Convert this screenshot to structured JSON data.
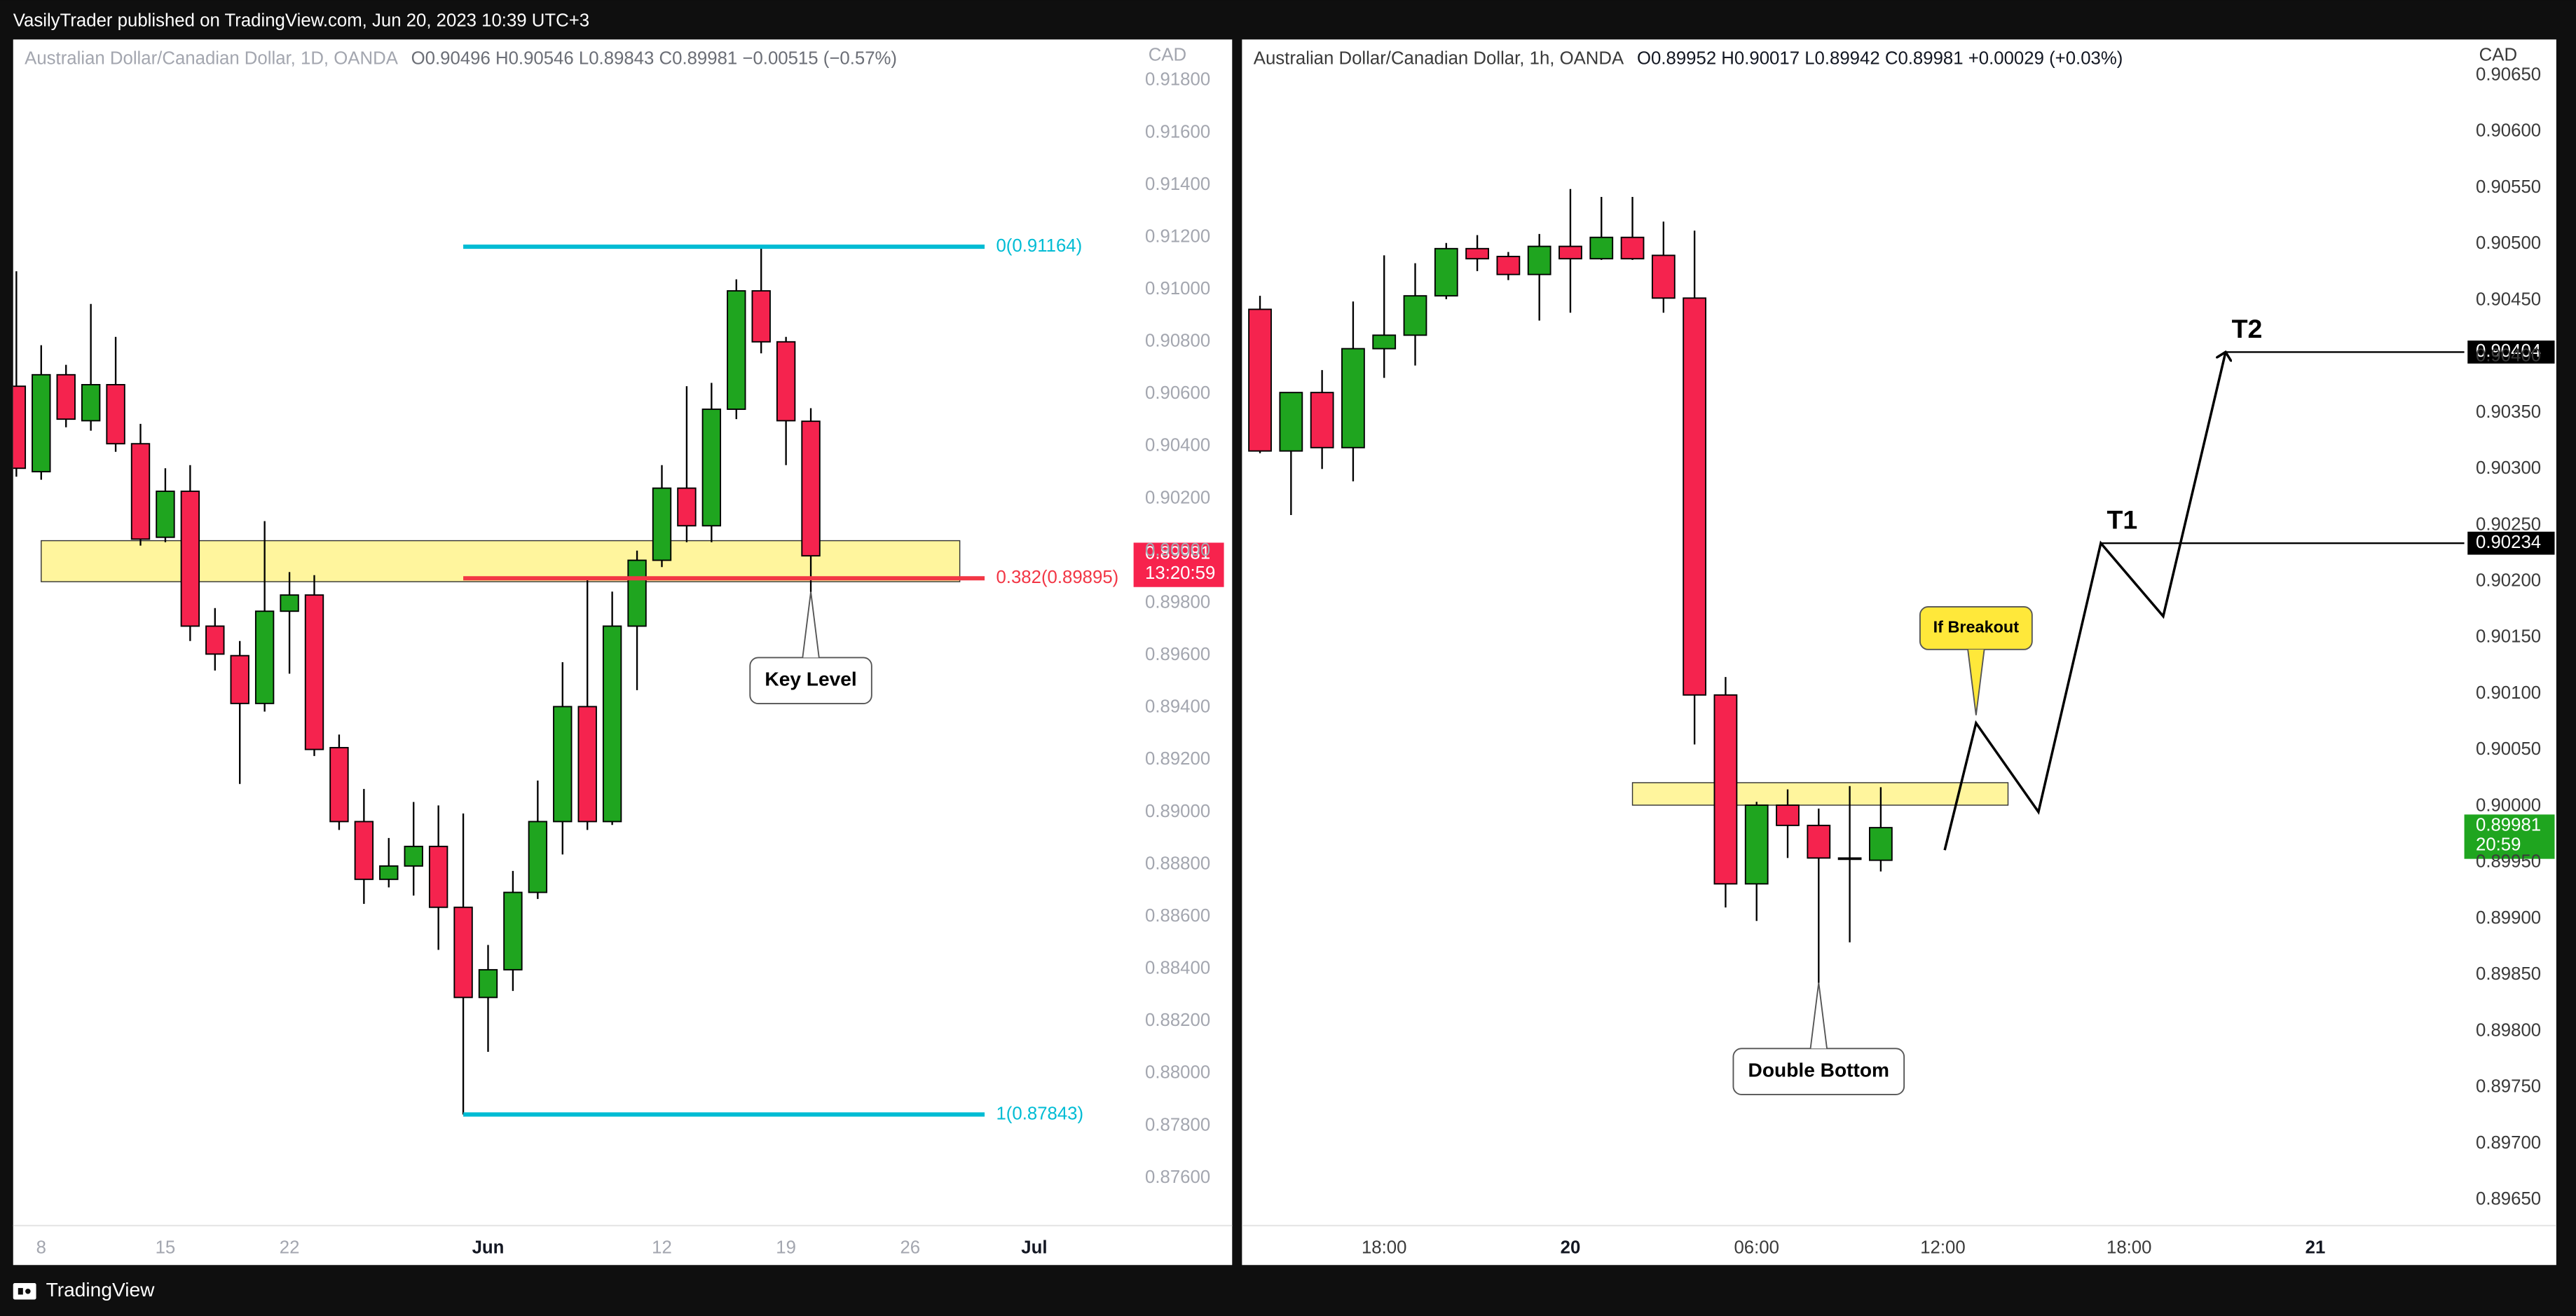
{
  "header": {
    "text": "VasilyTrader published on TradingView.com, Jun 20, 2023 10:39 UTC+3"
  },
  "footer": {
    "brand": "TradingView"
  },
  "chart_data": [
    {
      "type": "candlestick",
      "title": "Australian Dollar/Canadian Dollar, 1D, OANDA",
      "legend_text": "O0.90496  H0.90546  L0.89843  C0.89981  −0.00515 (−0.57%)",
      "axis_unit": "CAD",
      "text_color": "#a3a6af",
      "up_color": "#1fa51f",
      "down_color": "#f5234e",
      "grid": false,
      "open": [
        0.9063,
        0.90303,
        0.90674,
        0.90498,
        0.90636,
        0.9041,
        0.90052,
        0.90228,
        0.89712,
        0.89599,
        0.89416,
        0.89769,
        0.89831,
        0.89247,
        0.88964,
        0.88743,
        0.88794,
        0.88869,
        0.88636,
        0.88291,
        0.88397,
        0.88693,
        0.88964,
        0.89404,
        0.88964,
        0.89712,
        0.89964,
        0.9024,
        0.90096,
        0.90542,
        0.90995,
        0.908,
        0.90496
      ],
      "high": [
        0.9107,
        0.90787,
        0.90712,
        0.90945,
        0.90819,
        0.90486,
        0.90316,
        0.90328,
        0.89781,
        0.89655,
        0.90114,
        0.89919,
        0.89907,
        0.89297,
        0.89089,
        0.88901,
        0.89039,
        0.89026,
        0.88995,
        0.88492,
        0.88775,
        0.89121,
        0.89574,
        0.89894,
        0.89844,
        0.90001,
        0.90328,
        0.9063,
        0.90643,
        0.91039,
        0.91164,
        0.90819,
        0.90546
      ],
      "low": [
        0.90284,
        0.90272,
        0.90473,
        0.9046,
        0.90379,
        0.9002,
        0.90033,
        0.89655,
        0.89542,
        0.89108,
        0.89385,
        0.8953,
        0.89215,
        0.88932,
        0.88649,
        0.88712,
        0.88681,
        0.88473,
        0.87843,
        0.88083,
        0.88316,
        0.88668,
        0.88838,
        0.88932,
        0.88951,
        0.89467,
        0.89938,
        0.90033,
        0.90033,
        0.90504,
        0.90756,
        0.90328,
        0.89843
      ],
      "close": [
        0.90316,
        0.90674,
        0.90504,
        0.90636,
        0.9041,
        0.90045,
        0.90228,
        0.89712,
        0.89605,
        0.89416,
        0.89769,
        0.89831,
        0.8924,
        0.88964,
        0.88743,
        0.88794,
        0.88869,
        0.88636,
        0.88291,
        0.88397,
        0.88693,
        0.88964,
        0.89404,
        0.88964,
        0.89712,
        0.89964,
        0.9024,
        0.90096,
        0.90542,
        0.90995,
        0.908,
        0.90498,
        0.89981
      ],
      "xlim": [
        -0.13,
        45
      ],
      "xticks": [
        {
          "value": 1,
          "label": "8"
        },
        {
          "value": 6,
          "label": "15"
        },
        {
          "value": 11,
          "label": "22"
        },
        {
          "value": 19,
          "label": "Jun"
        },
        {
          "value": 26,
          "label": "12"
        },
        {
          "value": 31,
          "label": "19"
        },
        {
          "value": 36,
          "label": "26"
        },
        {
          "value": 41,
          "label": "Jul"
        }
      ],
      "ylim": [
        0.87267,
        0.91957
      ],
      "yticks": [
        {
          "value": 0.918,
          "label": "0.91800"
        },
        {
          "value": 0.916,
          "label": "0.91600"
        },
        {
          "value": 0.914,
          "label": "0.91400"
        },
        {
          "value": 0.912,
          "label": "0.91200"
        },
        {
          "value": 0.91,
          "label": "0.91000"
        },
        {
          "value": 0.908,
          "label": "0.90800"
        },
        {
          "value": 0.906,
          "label": "0.90600"
        },
        {
          "value": 0.904,
          "label": "0.90400"
        },
        {
          "value": 0.902,
          "label": "0.90200"
        },
        {
          "value": 0.9,
          "label": "0.90000"
        },
        {
          "value": 0.898,
          "label": "0.89800"
        },
        {
          "value": 0.896,
          "label": "0.89600"
        },
        {
          "value": 0.894,
          "label": "0.89400"
        },
        {
          "value": 0.892,
          "label": "0.89200"
        },
        {
          "value": 0.89,
          "label": "0.89000"
        },
        {
          "value": 0.888,
          "label": "0.88800"
        },
        {
          "value": 0.886,
          "label": "0.88600"
        },
        {
          "value": 0.884,
          "label": "0.88400"
        },
        {
          "value": 0.882,
          "label": "0.88200"
        },
        {
          "value": 0.88,
          "label": "0.88000"
        },
        {
          "value": 0.878,
          "label": "0.87800"
        },
        {
          "value": 0.876,
          "label": "0.87600"
        }
      ],
      "zone": {
        "x": [
          1,
          38
        ],
        "y": [
          0.89882,
          0.90039
        ],
        "color": "#fff59d"
      },
      "fib_levels": [
        {
          "value": 0.91164,
          "label": "0(0.91164)",
          "color": "#00bcd4",
          "x": [
            18,
            39
          ]
        },
        {
          "value": 0.89895,
          "label": "0.382(0.89895)",
          "color": "#f23645",
          "x": [
            18,
            39
          ]
        },
        {
          "value": 0.87843,
          "label": "1(0.87843)",
          "color": "#00bcd4",
          "x": [
            18,
            39
          ]
        }
      ],
      "callouts": [
        {
          "text": "Key Level",
          "x": 32,
          "y": 0.89843,
          "placement": "below",
          "color": "#ffffff"
        }
      ],
      "last_price": {
        "value": 0.89981,
        "countdown": "13:20:59",
        "color": "#f7234d"
      }
    },
    {
      "type": "candlestick",
      "title": "Australian Dollar/Canadian Dollar, 1h, OANDA",
      "legend_text": "O0.89952  H0.90017  L0.89942  C0.89981  +0.00029 (+0.03%)",
      "axis_unit": "CAD",
      "text_color": "#3a3a3a",
      "up_color": "#1fa51f",
      "down_color": "#f5234e",
      "grid": false,
      "open": [
        0.90442,
        0.90316,
        0.90368,
        0.90319,
        0.90407,
        0.90419,
        0.90454,
        0.90496,
        0.90489,
        0.90473,
        0.90498,
        0.90487,
        0.90506,
        0.9049,
        0.90452,
        0.90099,
        0.89931,
        0.90001,
        0.89983,
        0.89954,
        0.89952
      ],
      "high": [
        0.90454,
        0.90368,
        0.90388,
        0.90449,
        0.9049,
        0.90483,
        0.90501,
        0.90508,
        0.90493,
        0.90509,
        0.90549,
        0.90542,
        0.90542,
        0.9052,
        0.90512,
        0.90115,
        0.90004,
        0.90015,
        0.89998,
        0.90018,
        0.90017
      ],
      "low": [
        0.90314,
        0.90259,
        0.903,
        0.90289,
        0.90381,
        0.90392,
        0.90451,
        0.90476,
        0.90468,
        0.90432,
        0.90439,
        0.90486,
        0.90486,
        0.90439,
        0.90055,
        0.8991,
        0.89898,
        0.89954,
        0.89843,
        0.89879,
        0.89942
      ],
      "close": [
        0.90316,
        0.90368,
        0.90319,
        0.90407,
        0.90419,
        0.90454,
        0.90496,
        0.90487,
        0.90473,
        0.90498,
        0.90487,
        0.90506,
        0.90487,
        0.90452,
        0.90099,
        0.89931,
        0.90001,
        0.89983,
        0.89954,
        0.89954,
        0.89981
      ],
      "xlim": [
        -0.58,
        38.8
      ],
      "xticks": [
        {
          "value": 4,
          "label": "18:00"
        },
        {
          "value": 10,
          "label": "20"
        },
        {
          "value": 16,
          "label": "06:00"
        },
        {
          "value": 22,
          "label": "12:00"
        },
        {
          "value": 28,
          "label": "18:00"
        },
        {
          "value": 34,
          "label": "21"
        }
      ],
      "ylim": [
        0.89592,
        0.90682
      ],
      "yticks": [
        {
          "value": 0.9065,
          "label": "0.90650"
        },
        {
          "value": 0.906,
          "label": "0.90600"
        },
        {
          "value": 0.9055,
          "label": "0.90550"
        },
        {
          "value": 0.905,
          "label": "0.90500"
        },
        {
          "value": 0.9045,
          "label": "0.90450"
        },
        {
          "value": 0.904,
          "label": "0.90400"
        },
        {
          "value": 0.9035,
          "label": "0.90350"
        },
        {
          "value": 0.903,
          "label": "0.90300"
        },
        {
          "value": 0.9025,
          "label": "0.90250"
        },
        {
          "value": 0.902,
          "label": "0.90200"
        },
        {
          "value": 0.9015,
          "label": "0.90150"
        },
        {
          "value": 0.901,
          "label": "0.90100"
        },
        {
          "value": 0.9005,
          "label": "0.90050"
        },
        {
          "value": 0.9,
          "label": "0.90000"
        },
        {
          "value": 0.8995,
          "label": "0.89950"
        },
        {
          "value": 0.899,
          "label": "0.89900"
        },
        {
          "value": 0.8985,
          "label": "0.89850"
        },
        {
          "value": 0.898,
          "label": "0.89800"
        },
        {
          "value": 0.8975,
          "label": "0.89750"
        },
        {
          "value": 0.897,
          "label": "0.89700"
        },
        {
          "value": 0.8965,
          "label": "0.89650"
        }
      ],
      "zone": {
        "x": [
          12,
          24.1
        ],
        "y": [
          0.90001,
          0.90021
        ],
        "color": "#fff59d"
      },
      "projection": {
        "x": [
          22.06,
          23.07,
          25.08,
          27.09,
          29.1,
          31.11
        ],
        "y": [
          0.89961,
          0.90074,
          0.89995,
          0.90234,
          0.90169,
          0.90404
        ]
      },
      "targets": [
        {
          "label": "T1",
          "value": 0.90234,
          "x": 27.09
        },
        {
          "label": "T2",
          "value": 0.90404,
          "x": 31.11
        }
      ],
      "callouts": [
        {
          "text": "If Breakout",
          "x": 23.07,
          "y": 0.90081,
          "placement": "above",
          "color": "#ffe83a"
        },
        {
          "text": "Double Bottom",
          "x": 18,
          "y": 0.89843,
          "placement": "below",
          "color": "#ffffff"
        }
      ],
      "last_price": {
        "value": 0.89981,
        "countdown": "20:59",
        "color": "#1fa51f"
      }
    }
  ]
}
